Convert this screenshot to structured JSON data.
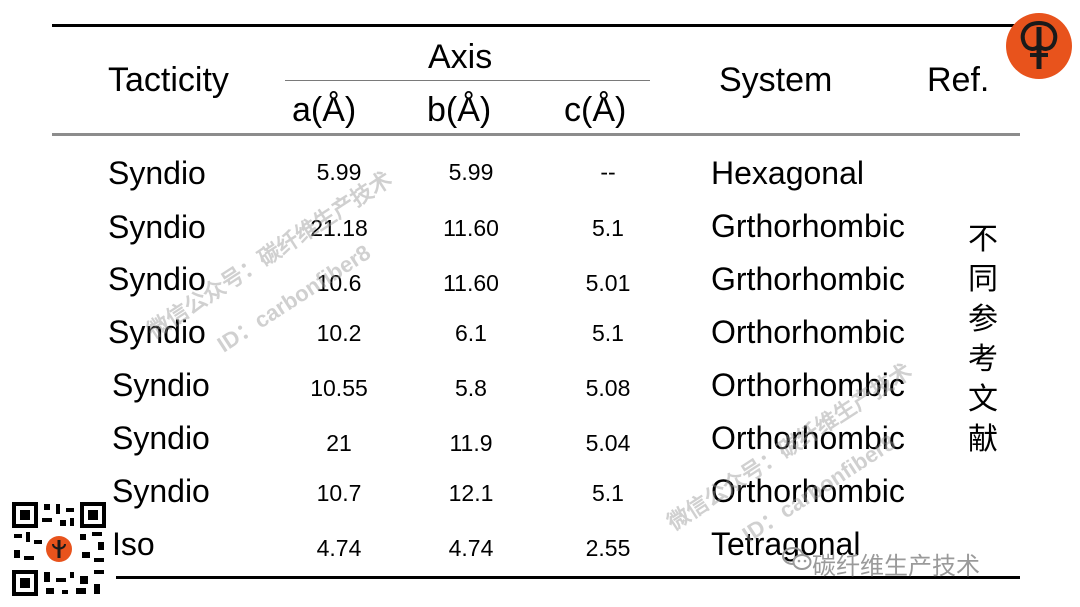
{
  "headers": {
    "tacticity": "Tacticity",
    "axis": "Axis",
    "a": "a(Å)",
    "b": "b(Å)",
    "c": "c(Å)",
    "system": "System",
    "ref": "Ref."
  },
  "rows": [
    {
      "tacticity": "Syndio",
      "a": "5.99",
      "b": "5.99",
      "c": "--",
      "system": "Hexagonal"
    },
    {
      "tacticity": "Syndio",
      "a": "21.18",
      "b": "11.60",
      "c": "5.1",
      "system": "Grthorhombic"
    },
    {
      "tacticity": "Syndio",
      "a": "10.6",
      "b": "11.60",
      "c": "5.01",
      "system": "Grthorhombic"
    },
    {
      "tacticity": "Syndio",
      "a": "10.2",
      "b": "6.1",
      "c": "5.1",
      "system": "Orthorhombic"
    },
    {
      "tacticity": "Syndio",
      "a": "10.55",
      "b": "5.8",
      "c": "5.08",
      "system": "Orthorhombic"
    },
    {
      "tacticity": "Syndio",
      "a": "21",
      "b": "11.9",
      "c": "5.04",
      "system": "Orthorhombic"
    },
    {
      "tacticity": "Syndio",
      "a": "10.7",
      "b": "12.1",
      "c": "5.1",
      "system": "Orthorhombic"
    },
    {
      "tacticity": "Iso",
      "a": "4.74",
      "b": "4.74",
      "c": "2.55",
      "system": "Tetragonal"
    }
  ],
  "ref_note": "不同参考文献",
  "watermark": {
    "line1": "微信公众号：碳纤维生产技术",
    "line2": "ID：carbonfiber8"
  },
  "footer_brand": "碳纤维生产技术",
  "icons": {
    "logo": "carbon-fiber-logo-icon",
    "qr": "qr-code-icon",
    "wechat": "wechat-icon"
  },
  "colors": {
    "logo": "#e8531c",
    "rule": "#000000",
    "header_rule": "#8c8c8c"
  }
}
